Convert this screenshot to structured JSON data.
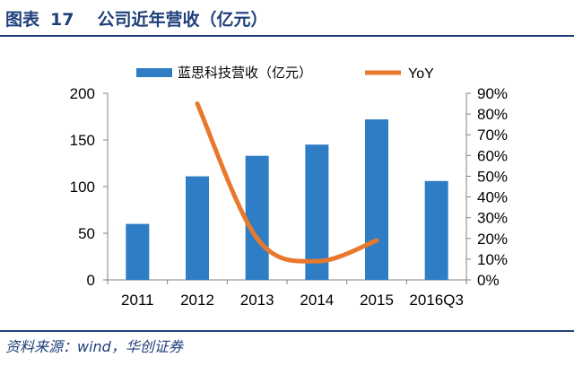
{
  "figure": {
    "label": "图表",
    "number": "17",
    "title": "公司近年营收（亿元）",
    "source": "资料来源：wind，华创证券"
  },
  "colors": {
    "bar": "#2f7dc4",
    "line": "#e8792c",
    "heading": "#1f3f7a"
  },
  "chart_data": {
    "type": "bar",
    "categories": [
      "2011",
      "2012",
      "2013",
      "2014",
      "2015",
      "2016Q3"
    ],
    "series": [
      {
        "name": "蓝思科技营收（亿元）",
        "type": "bar",
        "axis": "left",
        "values": [
          60,
          111,
          133,
          145,
          172,
          106
        ]
      },
      {
        "name": "YoY",
        "type": "line",
        "axis": "right",
        "smooth": true,
        "values": [
          null,
          0.85,
          0.2,
          0.09,
          0.19,
          null
        ]
      }
    ],
    "y_left": {
      "ticks": [
        0,
        50,
        100,
        150,
        200
      ],
      "ylim": [
        0,
        200
      ]
    },
    "y_right": {
      "ticks": [
        "0%",
        "10%",
        "20%",
        "30%",
        "40%",
        "50%",
        "60%",
        "70%",
        "80%",
        "90%"
      ],
      "ylim": [
        0,
        0.9
      ]
    },
    "legend_position": "top",
    "grid": false
  }
}
